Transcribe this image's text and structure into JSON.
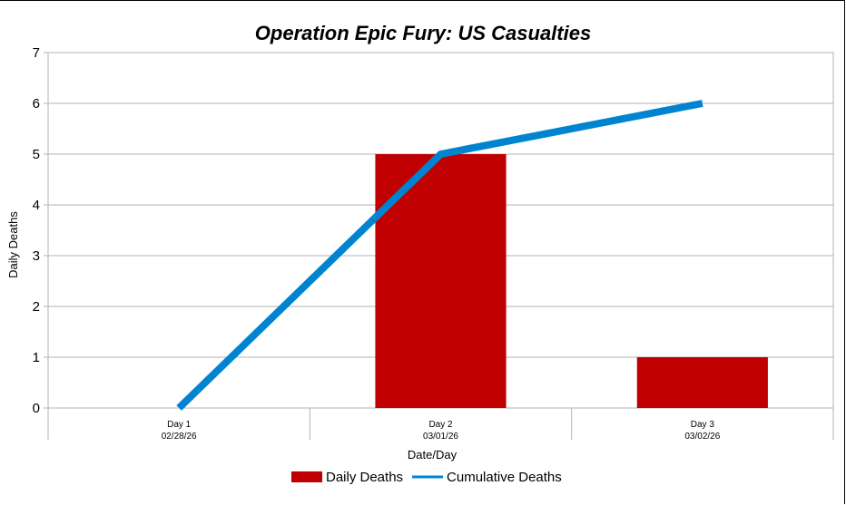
{
  "chart_data": {
    "type": "bar",
    "title": "Operation Epic Fury: US Casualties",
    "xlabel": "Date/Day",
    "ylabel": "Daily Deaths",
    "ylim": [
      0,
      7
    ],
    "yticks": [
      0,
      1,
      2,
      3,
      4,
      5,
      6,
      7
    ],
    "grid": true,
    "legend_position": "bottom",
    "categories": [
      {
        "day": "Day 1",
        "date": "02/28/26"
      },
      {
        "day": "Day 2",
        "date": "03/01/26"
      },
      {
        "day": "Day 3",
        "date": "03/02/26"
      }
    ],
    "series": [
      {
        "name": "Daily Deaths",
        "type": "bar",
        "color": "#c00000",
        "values": [
          0,
          5,
          1
        ]
      },
      {
        "name": "Cumulative Deaths",
        "type": "line",
        "color": "#0084d1",
        "values": [
          0,
          5,
          6
        ]
      }
    ]
  }
}
